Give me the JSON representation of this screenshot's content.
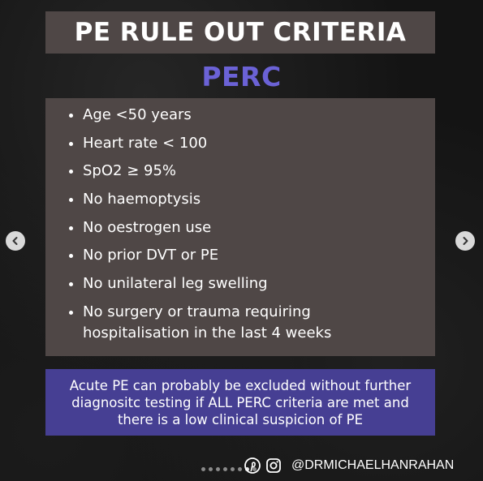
{
  "slide": {
    "title": "PE RULE OUT CRITERIA",
    "subtitle": "PERC",
    "criteria": [
      "Age <50 years",
      "Heart rate < 100",
      "SpO2 ≥ 95%",
      "No haemoptysis",
      "No oestrogen use",
      "No prior DVT or PE",
      "No unilateral leg swelling",
      "No surgery or trauma requiring hospitalisation in the last 4 weeks"
    ],
    "note": "Acute PE can probably be excluded without further diagnositc testing if ALL PERC criteria are met and there is a low clinical suspicion of PE",
    "handle": "@DRMICHAELHANRAHAN"
  },
  "carousel": {
    "prev_icon": "chevron-left-icon",
    "next_icon": "chevron-right-icon",
    "dot_count": 8
  },
  "icons": [
    "pinterest-icon",
    "instagram-icon"
  ],
  "colors": {
    "background": "#141414",
    "panel": "#4f4746",
    "accent_text": "#6b62d6",
    "note_panel": "#463f93",
    "text": "#ffffff"
  }
}
